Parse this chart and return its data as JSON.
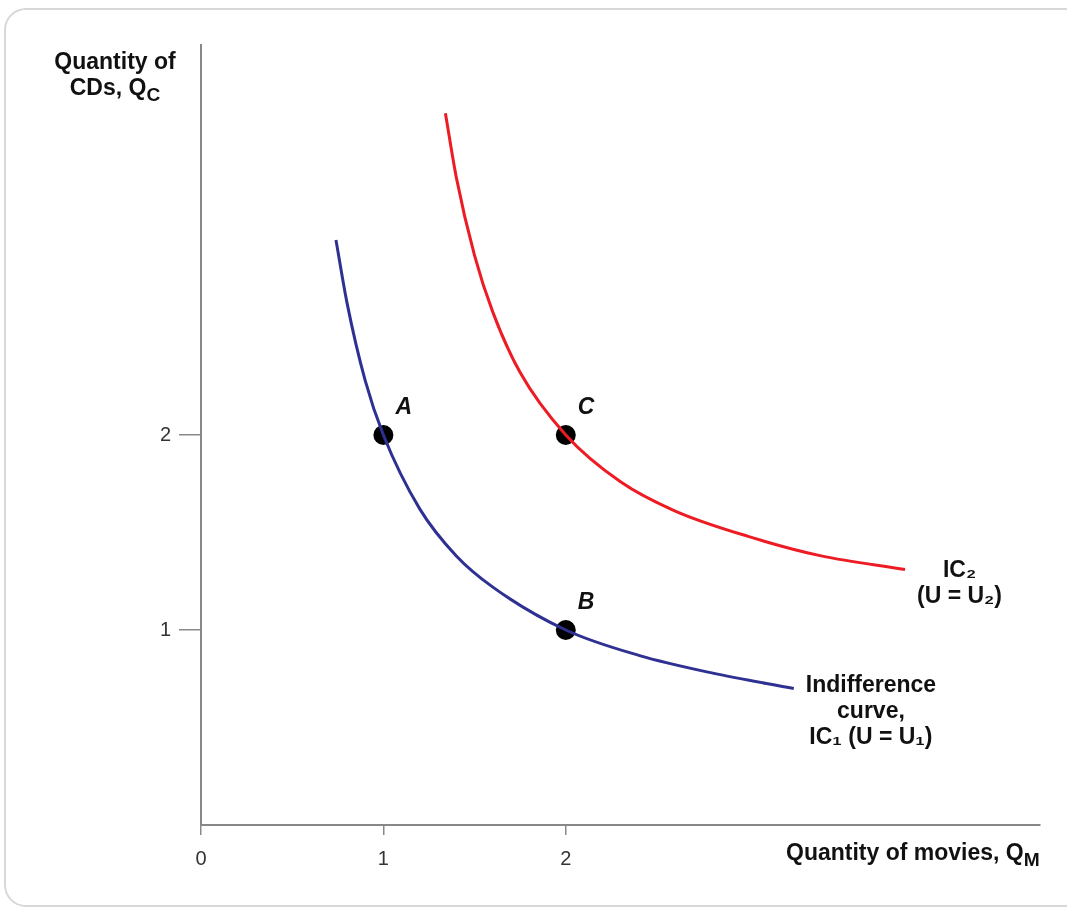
{
  "chart_data": {
    "type": "line",
    "xlabel": "Quantity of movies, Q$_{M}$",
    "ylabel": "Quantity of CDs, Q$_{C}$",
    "xlim": [
      0,
      4.6
    ],
    "ylim": [
      0,
      4
    ],
    "xticks": [
      0,
      1,
      2
    ],
    "yticks": [
      1,
      2
    ],
    "grid": false,
    "legend": false,
    "marker": "none",
    "line_style": "solid",
    "series": [
      {
        "color": "#2e3192",
        "x": [
          0.74,
          0.8,
          0.9,
          1,
          1.2,
          1.4,
          1.6,
          2,
          2.4,
          2.8,
          3.25
        ],
        "values": [
          3.0,
          2.68,
          2.28,
          2,
          1.62,
          1.38,
          1.22,
          1,
          0.87,
          0.78,
          0.7
        ]
      },
      {
        "color": "#ed1c24",
        "x": [
          1.34,
          1.4,
          1.5,
          1.6,
          1.75,
          2,
          2.3,
          2.6,
          3,
          3.4,
          3.86
        ],
        "values": [
          3.65,
          3.32,
          2.92,
          2.63,
          2.32,
          2,
          1.76,
          1.61,
          1.48,
          1.38,
          1.31
        ]
      },
      {
        "type": "scatter",
        "color": "#000000",
        "marker": "circle",
        "x": [
          1,
          2,
          2
        ],
        "values": [
          2,
          1,
          2
        ]
      }
    ],
    "annotations": [
      {
        "text": "A",
        "x": 1,
        "y": 2
      },
      {
        "text": "B",
        "x": 2,
        "y": 1
      },
      {
        "text": "C",
        "x": 2,
        "y": 2
      },
      {
        "text": "IC₂\n(U = U₂)",
        "x": 3.86,
        "y": 1.3
      },
      {
        "text": "Indifference\ncurve,\nIC₁ (U = U₁)",
        "x": 3.25,
        "y": 0.71
      }
    ]
  }
}
